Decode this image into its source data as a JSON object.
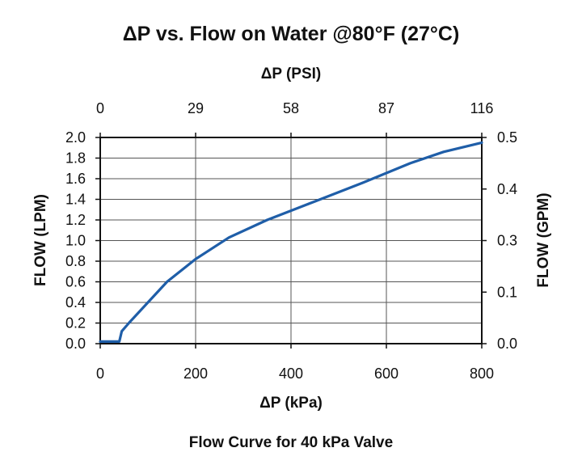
{
  "chart_data": {
    "type": "line",
    "title": "ΔP vs. Flow on Water @80°F (27°C)",
    "xlabel": "ΔP (kPa)",
    "x2label": "ΔP (PSI)",
    "ylabel": "FLOW (LPM)",
    "y2label": "FLOW (GPM)",
    "caption": "Flow Curve for 40 kPa Valve",
    "xlim": [
      0,
      800
    ],
    "ylim": [
      0,
      2.0
    ],
    "x_ticks": [
      "0",
      "200",
      "400",
      "600",
      "800"
    ],
    "x2_ticks": [
      "0",
      "29",
      "58",
      "87",
      "116"
    ],
    "y_ticks": [
      "0.0",
      "0.2",
      "0.4",
      "0.6",
      "0.8",
      "1.0",
      "1.2",
      "1.4",
      "1.6",
      "1.8",
      "2.0"
    ],
    "y2_ticks": [
      "0.0",
      "0.1",
      "0.3",
      "0.4",
      "0.5"
    ],
    "grid": true,
    "colors": {
      "curve": "#1f5ea8"
    },
    "series": [
      {
        "x": [
          0,
          40,
          45,
          60,
          100,
          140,
          200,
          270,
          350,
          450,
          550,
          650,
          720,
          800
        ],
        "values": [
          0.02,
          0.02,
          0.12,
          0.2,
          0.4,
          0.6,
          0.82,
          1.03,
          1.2,
          1.38,
          1.56,
          1.75,
          1.86,
          1.95
        ]
      }
    ]
  }
}
